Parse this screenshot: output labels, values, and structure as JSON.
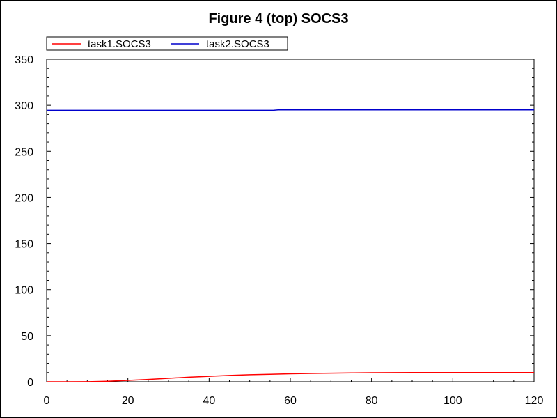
{
  "chart_data": {
    "type": "line",
    "title": "Figure 4 (top) SOCS3",
    "xlabel": "",
    "ylabel": "",
    "xlim": [
      0,
      120
    ],
    "ylim": [
      0,
      350
    ],
    "xticks": [
      0,
      20,
      40,
      60,
      80,
      100,
      120
    ],
    "yticks": [
      0,
      50,
      100,
      150,
      200,
      250,
      300,
      350
    ],
    "grid": false,
    "legend_position": "top-left",
    "series": [
      {
        "name": "task1.SOCS3",
        "color": "#ff0000",
        "x": [
          0,
          5,
          10,
          15,
          20,
          25,
          30,
          35,
          40,
          45,
          50,
          55,
          60,
          65,
          70,
          75,
          80,
          85,
          90,
          95,
          100,
          105,
          110,
          115,
          120
        ],
        "y": [
          0,
          0,
          0.1,
          0.6,
          1.5,
          2.6,
          3.8,
          5.0,
          6.0,
          6.9,
          7.6,
          8.2,
          8.7,
          9.1,
          9.4,
          9.6,
          9.8,
          9.9,
          10.0,
          10.0,
          10.0,
          10.0,
          10.0,
          10.0,
          10.0
        ]
      },
      {
        "name": "task2.SOCS3",
        "color": "#0000cc",
        "x": [
          0,
          20,
          40,
          56,
          57,
          60,
          80,
          100,
          120
        ],
        "y": [
          294.5,
          294.5,
          294.5,
          294.6,
          295.0,
          295.0,
          295.0,
          295.0,
          295.0
        ]
      }
    ]
  }
}
